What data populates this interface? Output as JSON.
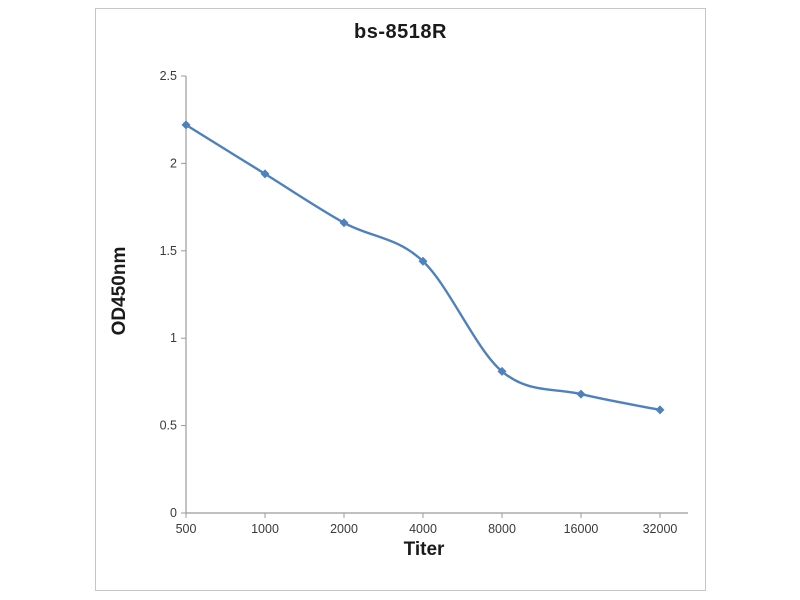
{
  "chart_data": {
    "type": "line",
    "title": "bs-8518R",
    "xlabel": "Titer",
    "ylabel": "OD450nm",
    "categories": [
      "500",
      "1000",
      "2000",
      "4000",
      "8000",
      "16000",
      "32000"
    ],
    "series": [
      {
        "name": "bs-8518R",
        "values": [
          2.22,
          1.94,
          1.66,
          1.44,
          0.81,
          0.68,
          0.59
        ]
      }
    ],
    "ylim": [
      0,
      2.5
    ],
    "y_ticks": [
      "0",
      "0.5",
      "1",
      "1.5",
      "2",
      "2.5"
    ],
    "grid": false,
    "legend": "none",
    "line_color": "#4f81bd",
    "marker": "diamond",
    "axis_color": "#9b9b9b",
    "tick_label_color": "#3a3a3a"
  }
}
